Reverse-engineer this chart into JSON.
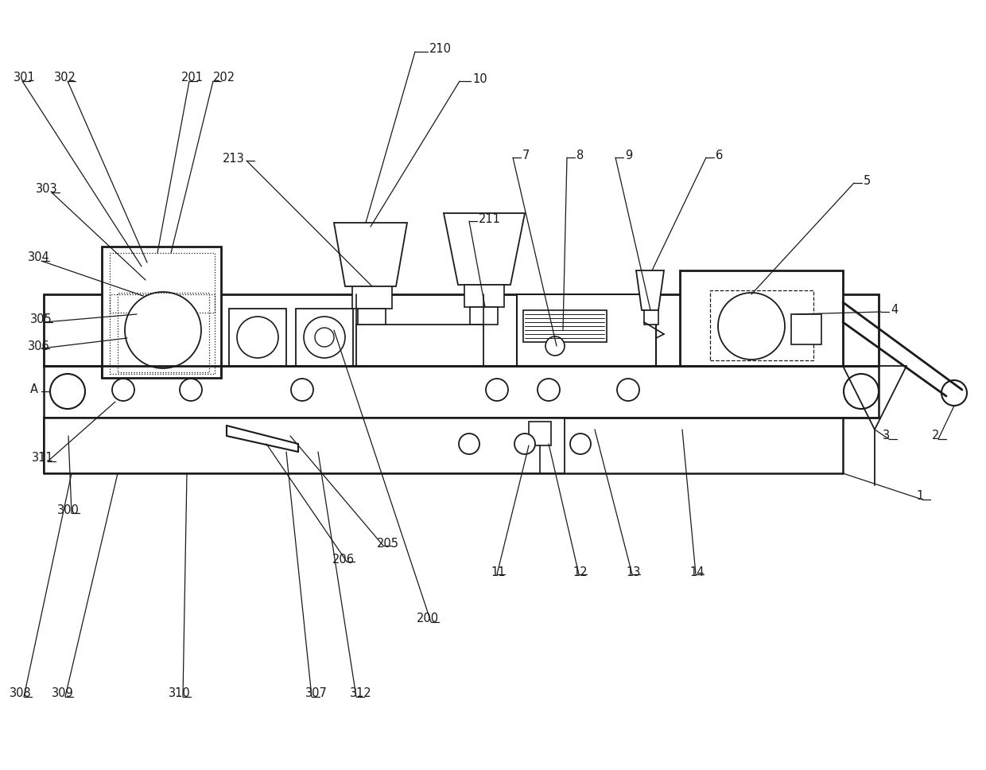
{
  "bg": "#ffffff",
  "lc": "#1a1a1a",
  "lw": 1.3
}
